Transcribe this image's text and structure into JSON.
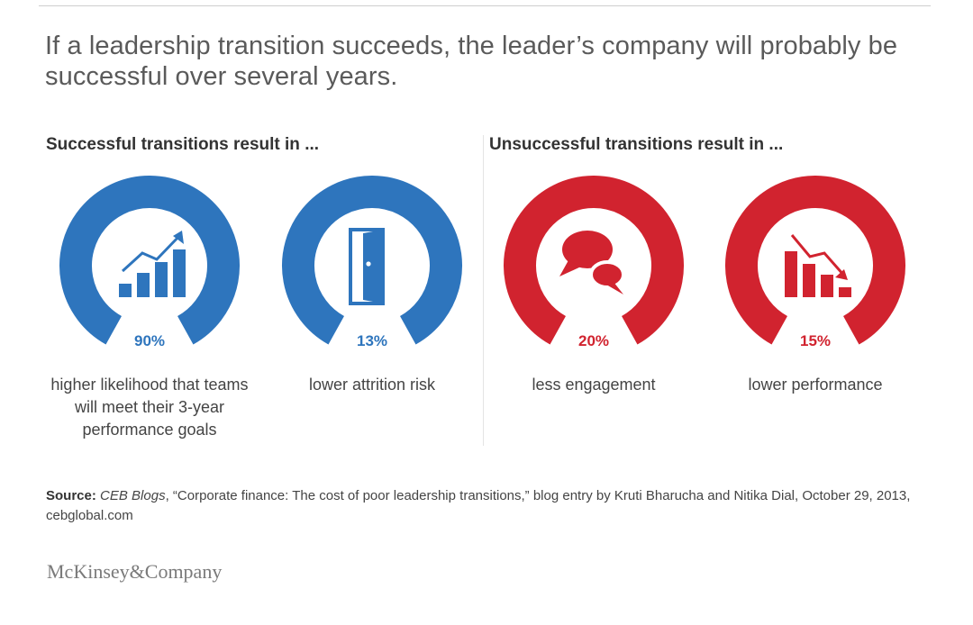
{
  "headline": "If a leadership transition succeeds, the leader’s company will probably be successful over several years.",
  "sections": {
    "successful_heading": "Successful transitions result in ...",
    "unsuccessful_heading": "Unsuccessful transitions result in ..."
  },
  "colors": {
    "successful": "#2e75bd",
    "unsuccessful": "#d1232f"
  },
  "chart_data": {
    "type": "gauge",
    "metrics": [
      {
        "value": 90,
        "label": "90%",
        "caption": "higher likelihood that teams will meet their 3-year performance goals",
        "group": "successful",
        "icon": "bar-chart-up-icon"
      },
      {
        "value": 13,
        "label": "13%",
        "caption": "lower attrition risk",
        "group": "successful",
        "icon": "door-icon"
      },
      {
        "value": 20,
        "label": "20%",
        "caption": "less engagement",
        "group": "unsuccessful",
        "icon": "speech-bubbles-icon"
      },
      {
        "value": 15,
        "label": "15%",
        "caption": "lower performance",
        "group": "unsuccessful",
        "icon": "bar-chart-down-icon"
      }
    ]
  },
  "source": {
    "label": "Source:",
    "publication": "CEB Blogs",
    "text": ", “Corporate finance: The cost of poor leadership transitions,” blog entry by Kruti Bharucha and Nitika Dial, October 29, 2013, cebglobal.com"
  },
  "logo": "McKinsey&Company"
}
